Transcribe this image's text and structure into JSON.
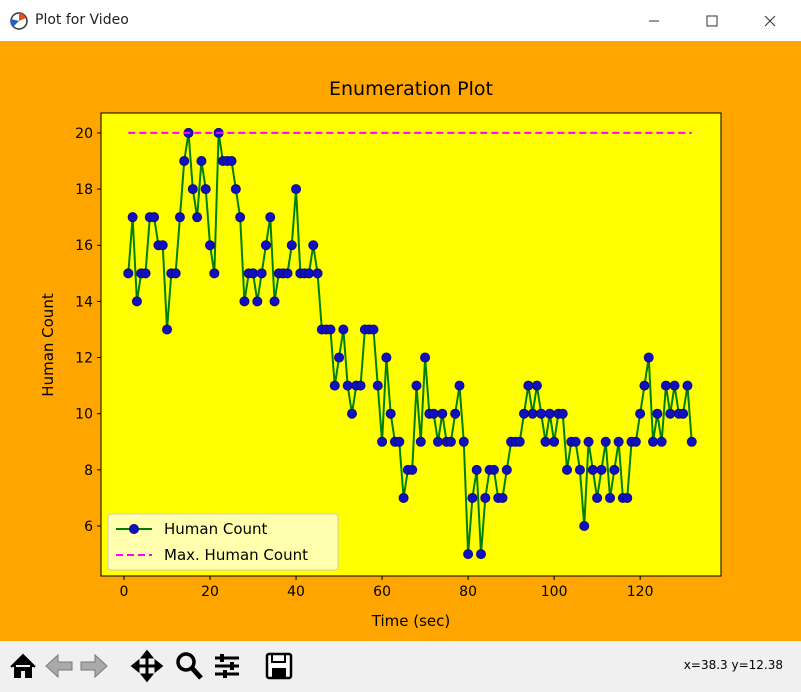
{
  "window": {
    "title": "Plot for Video",
    "status": "x=38.3 y=12.38"
  },
  "chart_data": {
    "type": "line",
    "title": "Enumeration Plot",
    "x_label": "Time (sec)",
    "y_label": "Human Count",
    "x": [
      1,
      2,
      3,
      4,
      5,
      6,
      7,
      8,
      9,
      10,
      11,
      12,
      13,
      14,
      15,
      16,
      17,
      18,
      19,
      20,
      21,
      22,
      23,
      24,
      25,
      26,
      27,
      28,
      29,
      30,
      31,
      32,
      33,
      34,
      35,
      36,
      37,
      38,
      39,
      40,
      41,
      42,
      43,
      44,
      45,
      46,
      47,
      48,
      49,
      50,
      51,
      52,
      53,
      54,
      55,
      56,
      57,
      58,
      59,
      60,
      61,
      62,
      63,
      64,
      65,
      66,
      67,
      68,
      69,
      70,
      71,
      72,
      73,
      74,
      75,
      76,
      77,
      78,
      79,
      80,
      81,
      82,
      83,
      84,
      85,
      86,
      87,
      88,
      89,
      90,
      91,
      92,
      93,
      94,
      95,
      96,
      97,
      98,
      99,
      100,
      101,
      102,
      103,
      104,
      105,
      106,
      107,
      108,
      109,
      110,
      111,
      112,
      113,
      114,
      115,
      116,
      117,
      118,
      119,
      120,
      121,
      122,
      123,
      124,
      125,
      126,
      127,
      128,
      129,
      130,
      131,
      132
    ],
    "series": [
      {
        "name": "Human Count",
        "color": "#008000",
        "marker_color": "#1010c0",
        "values": [
          15,
          17,
          14,
          15,
          15,
          17,
          17,
          16,
          16,
          13,
          15,
          15,
          17,
          19,
          20,
          18,
          17,
          19,
          18,
          16,
          15,
          20,
          19,
          19,
          19,
          18,
          17,
          14,
          15,
          15,
          14,
          15,
          16,
          17,
          14,
          15,
          15,
          15,
          16,
          18,
          15,
          15,
          15,
          16,
          15,
          13,
          13,
          13,
          11,
          12,
          13,
          11,
          10,
          11,
          11,
          13,
          13,
          13,
          11,
          9,
          12,
          10,
          9,
          9,
          7,
          8,
          8,
          11,
          9,
          12,
          10,
          10,
          9,
          10,
          9,
          9,
          10,
          11,
          9,
          5,
          7,
          8,
          5,
          7,
          8,
          8,
          7,
          7,
          8,
          9,
          9,
          9,
          10,
          11,
          10,
          11,
          10,
          9,
          10,
          9,
          10,
          10,
          8,
          9,
          9,
          8,
          6,
          9,
          8,
          7,
          8,
          9,
          7,
          8,
          9,
          7,
          7,
          9,
          9,
          10,
          11,
          12,
          9,
          10,
          9,
          11,
          10,
          11,
          10,
          10,
          11,
          9
        ]
      },
      {
        "name": "Max. Human Count",
        "color": "#ff00ff",
        "dashed": true,
        "x": [
          1,
          132
        ],
        "values": [
          20,
          20
        ]
      }
    ],
    "xlim": [
      -5.35,
      138.8
    ],
    "ylim": [
      4.22,
      20.71
    ],
    "xticks": [
      0,
      20,
      40,
      60,
      80,
      100,
      120
    ],
    "yticks": [
      6,
      8,
      10,
      12,
      14,
      16,
      18,
      20
    ],
    "grid": false,
    "legend": "lower left",
    "plot_background": "#ffff00",
    "figure_background": "#ffa500"
  }
}
